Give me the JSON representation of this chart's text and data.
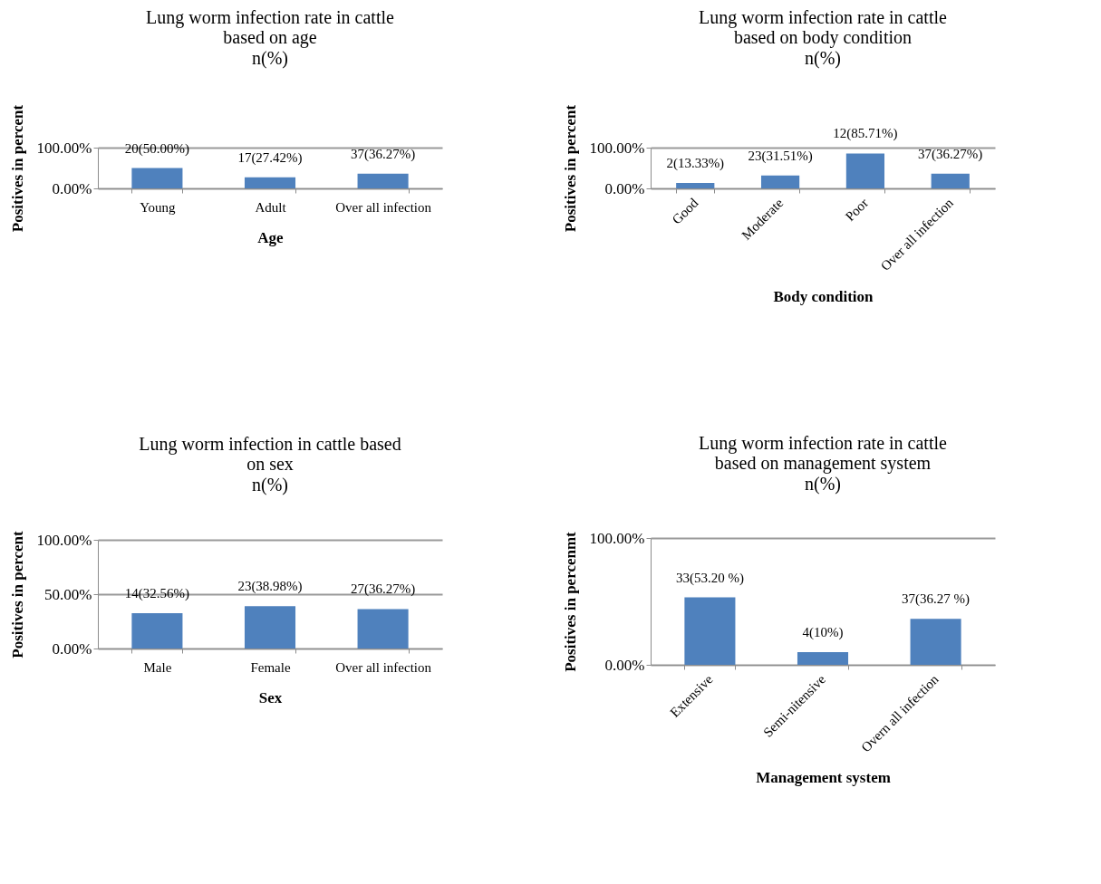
{
  "chart_data": [
    {
      "type": "bar",
      "title": "Lung worm infection rate in cattle based on age",
      "subtitle": "n(%)",
      "xlabel": "Age",
      "ylabel": "Positives in percent",
      "categories": [
        "Young",
        "Adult",
        "Over all infection"
      ],
      "values": [
        50.0,
        27.42,
        36.27
      ],
      "value_labels": [
        "20(50.00%)",
        "17(27.42%)",
        "37(36.27%)"
      ],
      "color": "#4f81bd",
      "ylim": [
        0,
        100
      ],
      "yticks": [
        {
          "value": 0,
          "label": "0.00%"
        },
        {
          "value": 100,
          "label": "100.00%"
        }
      ],
      "grid": "y"
    },
    {
      "type": "bar",
      "title": "Lung worm infection rate in cattle based on body condition",
      "subtitle": "n(%)",
      "xlabel": "Body condition",
      "ylabel": "Positives in percent",
      "categories": [
        "Good",
        "Moderate",
        "Poor",
        "Over all infection"
      ],
      "values": [
        13.33,
        31.51,
        85.71,
        36.27
      ],
      "value_labels": [
        "2(13.33%)",
        "23(31.51%)",
        "12(85.71%)",
        "37(36.27%)"
      ],
      "color": "#4f81bd",
      "ylim": [
        0,
        100
      ],
      "yticks": [
        {
          "value": 0,
          "label": "0.00%"
        },
        {
          "value": 100,
          "label": "100.00%"
        }
      ],
      "grid": "y"
    },
    {
      "type": "bar",
      "title": "Lung worm infection in cattle based on sex",
      "subtitle": "n(%)",
      "xlabel": "Sex",
      "ylabel": "Positives in percent",
      "categories": [
        "Male",
        "Female",
        "Over all infection"
      ],
      "values": [
        32.56,
        38.98,
        36.27
      ],
      "value_labels": [
        "14(32.56%)",
        "23(38.98%)",
        "27(36.27%)"
      ],
      "color": "#4f81bd",
      "ylim": [
        0,
        100
      ],
      "yticks": [
        {
          "value": 0,
          "label": "0.00%"
        },
        {
          "value": 50,
          "label": "50.00%"
        },
        {
          "value": 100,
          "label": "100.00%"
        }
      ],
      "grid": "y"
    },
    {
      "type": "bar",
      "title": "Lung worm infection rate in cattle based on management system",
      "subtitle": "n(%)",
      "xlabel": "Management system",
      "ylabel": "Positives in percenmt",
      "categories": [
        "Extensive",
        "Semi-nitensive",
        "Overn all infection"
      ],
      "values": [
        53.2,
        10,
        36.27
      ],
      "value_labels": [
        "33(53.20 %)",
        "4(10%)",
        "37(36.27 %)"
      ],
      "color": "#4f81bd",
      "ylim": [
        0,
        100
      ],
      "yticks": [
        {
          "value": 0,
          "label": "0.00%"
        },
        {
          "value": 100,
          "label": "100.00%"
        }
      ],
      "grid": "y"
    }
  ]
}
